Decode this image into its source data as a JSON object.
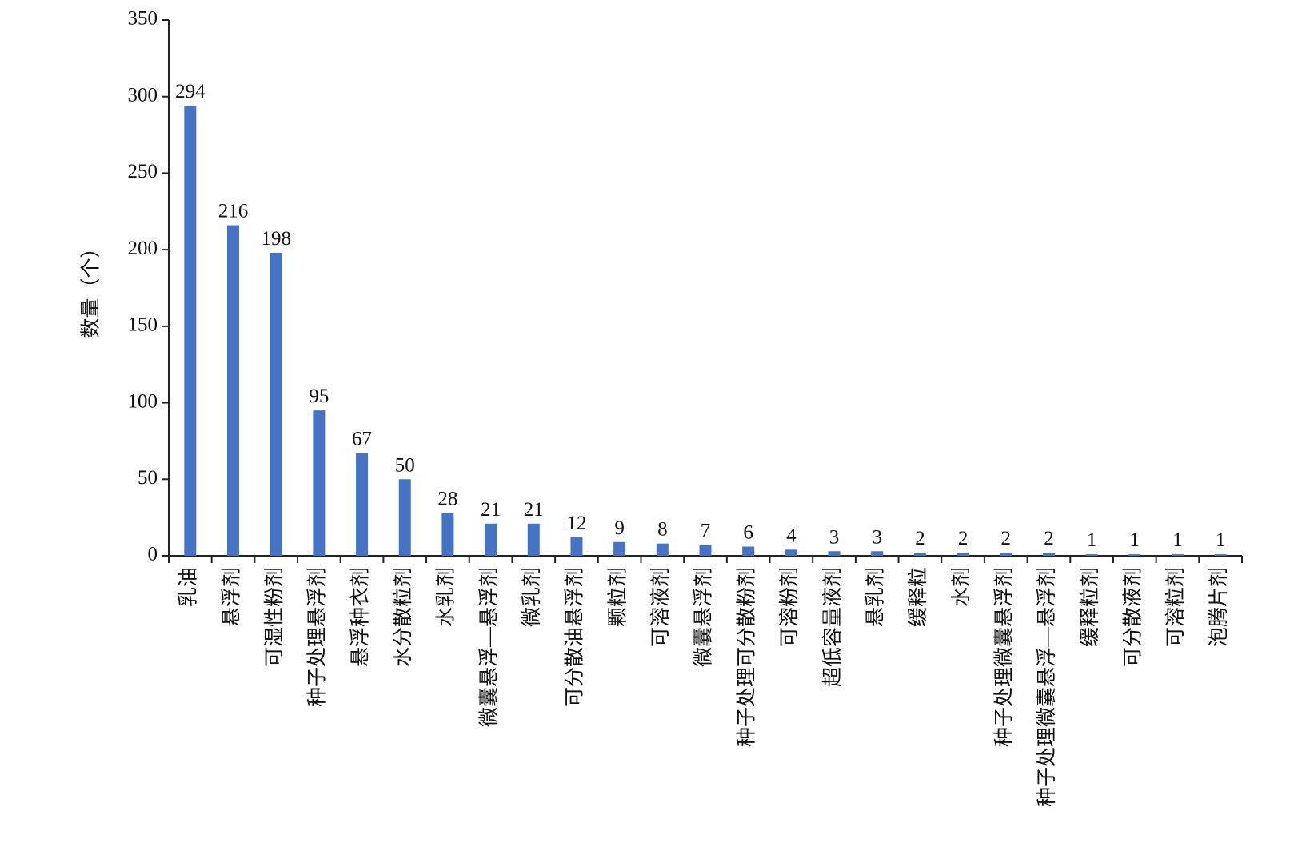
{
  "chart_data": {
    "type": "bar",
    "y_label": "数量（个）",
    "categories": [
      "乳油",
      "悬浮剂",
      "可湿性粉剂",
      "种子处理悬浮剂",
      "悬浮种衣剂",
      "水分散粒剂",
      "水乳剂",
      "微囊悬浮—悬浮剂",
      "微乳剂",
      "可分散油悬浮剂",
      "颗粒剂",
      "可溶液剂",
      "微囊悬浮剂",
      "种子处理可分散粉剂",
      "可溶粉剂",
      "超低容量液剂",
      "悬乳剂",
      "缓释粒",
      "水剂",
      "种子处理微囊悬浮剂",
      "种子处理微囊悬浮—悬浮剂",
      "缓释粒剂",
      "可分散液剂",
      "可溶粒剂",
      "泡腾片剂"
    ],
    "values": [
      294,
      216,
      198,
      95,
      67,
      50,
      28,
      21,
      21,
      12,
      9,
      8,
      7,
      6,
      4,
      3,
      3,
      2,
      2,
      2,
      2,
      1,
      1,
      1,
      1
    ],
    "color": "#4472c4",
    "ylim": [
      0,
      350
    ],
    "yticks": [
      0,
      50,
      100,
      150,
      200,
      250,
      300,
      350
    ]
  }
}
